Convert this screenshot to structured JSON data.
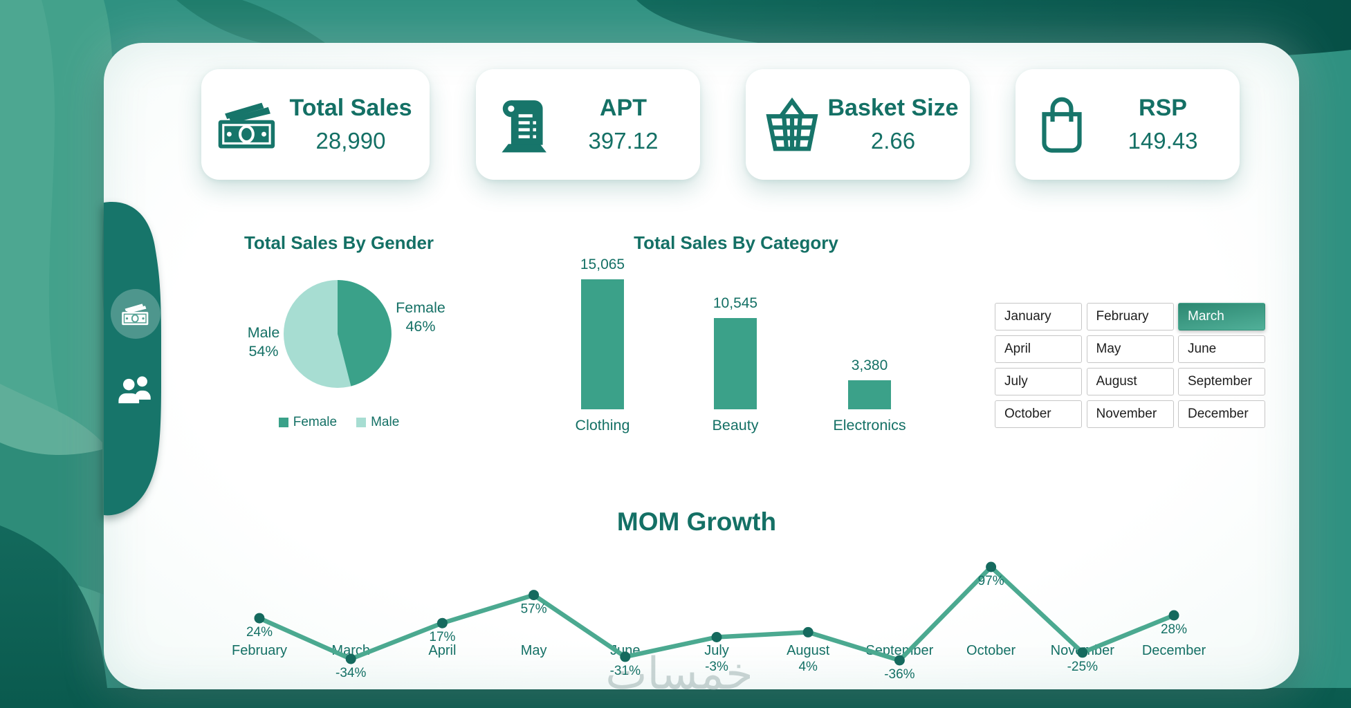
{
  "watermark": "خمسات",
  "theme": {
    "teal_text": "#147065",
    "card_bg": "#ffffff",
    "background_base": "#2f9181",
    "background_dark_band": "#0e695c",
    "sidebar_bg": "#17756a",
    "pie_female_color": "#3aa189",
    "pie_male_color": "#a7ddd2",
    "bar_color": "#3ba189",
    "line_color": "#4ba990",
    "point_color": "#156a5e",
    "slicer_selected_gradient": [
      "#2c8771",
      "#4fae97"
    ]
  },
  "kpis": [
    {
      "title": "Total Sales",
      "value": "28,990",
      "icon": "money-icon"
    },
    {
      "title": "APT",
      "value": "397.12",
      "icon": "receipt-icon"
    },
    {
      "title": "Basket Size",
      "value": "2.66",
      "icon": "basket-icon"
    },
    {
      "title": "RSP",
      "value": "149.43",
      "icon": "bag-icon"
    }
  ],
  "sidebar": {
    "items": [
      {
        "icon": "money-icon",
        "selected": true
      },
      {
        "icon": "people-icon",
        "selected": false
      }
    ]
  },
  "slicer": {
    "selected": "March",
    "months": [
      "January",
      "February",
      "March",
      "April",
      "May",
      "June",
      "July",
      "August",
      "September",
      "October",
      "November",
      "December"
    ]
  },
  "chart_data": [
    {
      "type": "pie",
      "title": "Total Sales By Gender",
      "labels": [
        "Female",
        "Male"
      ],
      "values": [
        46,
        54
      ],
      "unit": "%",
      "callouts": [
        {
          "label": "Male",
          "pct": "54%"
        },
        {
          "label": "Female",
          "pct": "46%"
        }
      ],
      "legend": [
        "Female",
        "Male"
      ],
      "legend_position": "bottom",
      "start_angle": "top",
      "direction": "clockwise"
    },
    {
      "type": "bar",
      "title": "Total Sales By Category",
      "categories": [
        "Clothing",
        "Beauty",
        "Electronics"
      ],
      "values": [
        15065,
        10545,
        3380
      ],
      "data_labels": [
        "15,065",
        "10,545",
        "3,380"
      ],
      "ylim": [
        0,
        15065
      ],
      "grid": false
    },
    {
      "type": "line",
      "title": "MOM Growth",
      "categories": [
        "February",
        "March",
        "April",
        "May",
        "June",
        "July",
        "August",
        "September",
        "October",
        "November",
        "December"
      ],
      "values": [
        24,
        -34,
        17,
        57,
        -31,
        -3,
        4,
        -36,
        97,
        -25,
        28
      ],
      "data_labels": [
        "24%",
        "-34%",
        "17%",
        "57%",
        "-31%",
        "-3%",
        "4%",
        "-36%",
        "97%",
        "-25%",
        "28%"
      ],
      "unit": "%",
      "ylim": [
        -36,
        97
      ],
      "grid": false
    }
  ]
}
